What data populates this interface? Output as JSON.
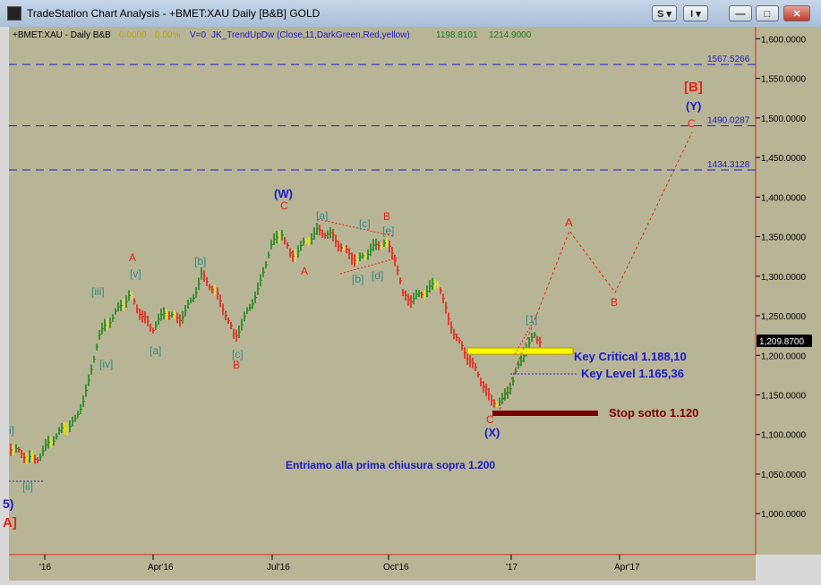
{
  "window": {
    "title": "TradeStation Chart Analysis - +BMET:XAU Daily [B&B] GOLD",
    "btn_s": "S",
    "btn_i": "I",
    "btn_min": "—",
    "btn_max": "□",
    "btn_close": "✕"
  },
  "chart_data": {
    "type": "bar",
    "header": {
      "symbol": "+BMET:XAU - Daily  B&B",
      "change": "0.0000",
      "change_pct": "0.00%",
      "volume": "V=0",
      "indicator": "JK_TrendUpDw (Close,11,DarkGreen,Red,yellow)",
      "value1": "1198.8101",
      "value2": "1214.9000"
    },
    "y_axis": {
      "range": [
        960,
        1640
      ],
      "ticks": [
        "1,600.0000",
        "1,550.0000",
        "1,500.0000",
        "1,450.0000",
        "1,400.0000",
        "1,350.0000",
        "1,300.0000",
        "1,250.0000",
        "1,200.0000",
        "1,150.0000",
        "1,100.0000",
        "1,050.0000",
        "1,000.0000"
      ],
      "tick_values": [
        1600,
        1550,
        1500,
        1450,
        1400,
        1350,
        1300,
        1250,
        1200,
        1150,
        1100,
        1050,
        1000
      ],
      "last_price_label": "1,209.8700",
      "last_price": 1209.87
    },
    "x_axis": {
      "labels": [
        "'16",
        "Apr'16",
        "Jul'16",
        "Oct'16",
        "'17",
        "Apr'17"
      ]
    },
    "levels": [
      {
        "name": "level-1567",
        "value": 1567.5266,
        "label": "1567.5266"
      },
      {
        "name": "level-1490",
        "value": 1490.0287,
        "label": "1490.0287"
      },
      {
        "name": "level-1434",
        "value": 1434.3128,
        "label": "1434.3128"
      }
    ],
    "annotations": {
      "key_critical": "Key Critical  1.188,10",
      "key_level": "Key Level  1.165,36",
      "stop": "Stop sotto 1.120",
      "entry": "Entriamo alla prima chiusura sopra 1.200"
    },
    "wave_labels": [
      {
        "id": "W",
        "text": "(W)",
        "color": "#1a1acc"
      },
      {
        "id": "C1",
        "text": "C",
        "color": "#e8231a"
      },
      {
        "id": "A1",
        "text": "A",
        "color": "#e8231a"
      },
      {
        "id": "A2",
        "text": "A",
        "color": "#e8231a"
      },
      {
        "id": "v",
        "text": "[v]",
        "color": "#2e8b8b"
      },
      {
        "id": "iii",
        "text": "[iii]",
        "color": "#2e8b8b"
      },
      {
        "id": "iv",
        "text": "[iv]",
        "color": "#2e8b8b"
      },
      {
        "id": "i",
        "text": "i]",
        "color": "#2e8b8b"
      },
      {
        "id": "ii",
        "text": "[ii]",
        "color": "#2e8b8b"
      },
      {
        "id": "a",
        "text": "[a]",
        "color": "#2e8b8b"
      },
      {
        "id": "b",
        "text": "[b]",
        "color": "#2e8b8b"
      },
      {
        "id": "c",
        "text": "[c]",
        "color": "#2e8b8b"
      },
      {
        "id": "B1",
        "text": "B",
        "color": "#e8231a"
      },
      {
        "id": "a2",
        "text": "[a]",
        "color": "#2e8b8b"
      },
      {
        "id": "c2",
        "text": "[c]",
        "color": "#2e8b8b"
      },
      {
        "id": "e2",
        "text": "[e]",
        "color": "#2e8b8b"
      },
      {
        "id": "b2",
        "text": "[b]",
        "color": "#2e8b8b"
      },
      {
        "id": "d2",
        "text": "[d]",
        "color": "#2e8b8b"
      },
      {
        "id": "B2",
        "text": "B",
        "color": "#e8231a"
      },
      {
        "id": "one",
        "text": "[1]",
        "color": "#2e8b8b"
      },
      {
        "id": "C2",
        "text": "C",
        "color": "#e8231a"
      },
      {
        "id": "X",
        "text": "(X)",
        "color": "#1a1acc"
      },
      {
        "id": "fA",
        "text": "A",
        "color": "#e8231a"
      },
      {
        "id": "fB",
        "text": "B",
        "color": "#e8231a"
      },
      {
        "id": "fC",
        "text": "C",
        "color": "#e8231a"
      },
      {
        "id": "Y",
        "text": "(Y)",
        "color": "#1a1acc"
      },
      {
        "id": "BB",
        "text": "[B]",
        "color": "#e8231a"
      },
      {
        "id": "edge5",
        "text": "5)",
        "color": "#1a1acc"
      },
      {
        "id": "edgeA",
        "text": "A]",
        "color": "#e8231a"
      }
    ],
    "projection": [
      {
        "x": "Dec'16",
        "y": 1120
      },
      {
        "x": "Feb'17",
        "y": 1355
      },
      {
        "x": "Mar'17",
        "y": 1270
      },
      {
        "x": "Jun'17",
        "y": 1490
      }
    ],
    "colors": {
      "background": "#b8b496",
      "up": "#1e8a1e",
      "down": "#e8231a",
      "neutral": "#e8e815",
      "level_line": "#2020c8",
      "stop_bar": "#7a0000",
      "box": "#ffff00"
    }
  }
}
